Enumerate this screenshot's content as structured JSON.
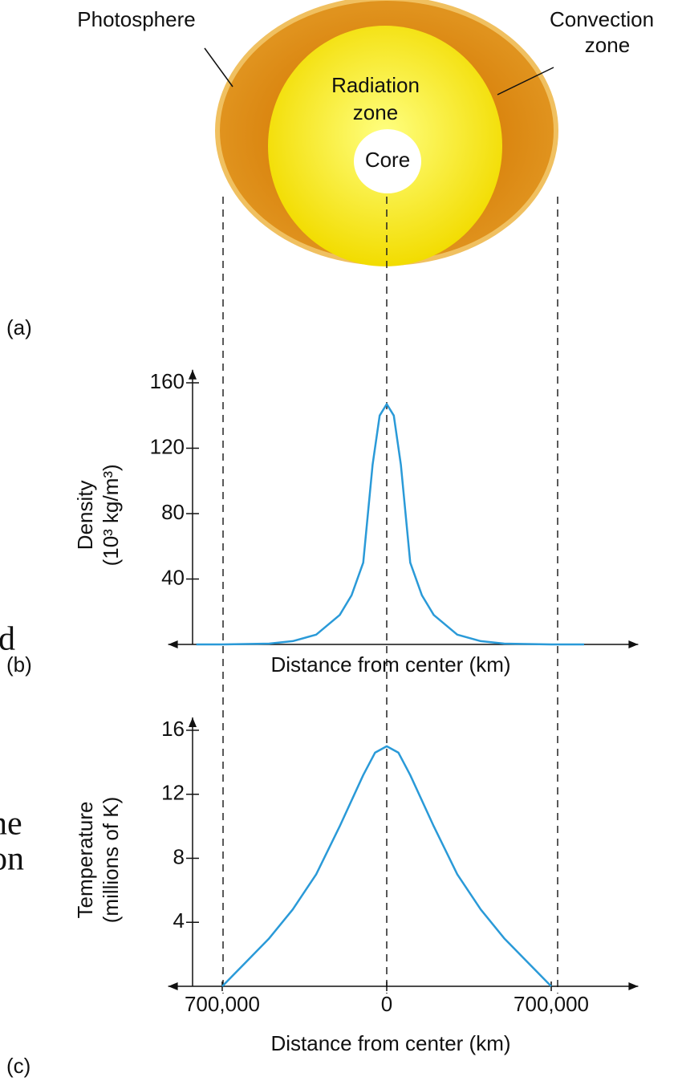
{
  "diagram": {
    "panel": "(a)",
    "photosphere": "Photosphere",
    "convection": [
      "Convection",
      "zone"
    ],
    "radiation": [
      "Radiation",
      "zone"
    ],
    "core": "Core"
  },
  "fragments": [
    "d",
    "ne",
    "on"
  ],
  "chart_data": [
    {
      "type": "line",
      "panel": "(b)",
      "ylabel": [
        "Density",
        "(10³ kg/m³)"
      ],
      "xlabel": "Distance from center (km)",
      "x": [
        -810000,
        -700000,
        -500000,
        -400000,
        -300000,
        -200000,
        -150000,
        -100000,
        -60000,
        -30000,
        0,
        30000,
        60000,
        100000,
        150000,
        200000,
        300000,
        400000,
        500000,
        700000,
        840000
      ],
      "series": [
        {
          "name": "Density",
          "color": "#2a9ad8",
          "values": [
            0,
            0,
            0.5,
            2,
            6,
            18,
            30,
            50,
            110,
            140,
            147,
            140,
            110,
            50,
            30,
            18,
            6,
            2,
            0.5,
            0,
            0
          ]
        }
      ],
      "xlim": [
        -930000,
        1070000
      ],
      "ylim": [
        0,
        168
      ],
      "yticks": [
        40,
        80,
        120,
        160
      ]
    },
    {
      "type": "line",
      "panel": "(c)",
      "ylabel": [
        "Temperature",
        "(millions of K)"
      ],
      "xlabel": "Distance from center (km)",
      "x": [
        -700000,
        -600000,
        -500000,
        -400000,
        -300000,
        -200000,
        -100000,
        -50000,
        0,
        50000,
        100000,
        200000,
        300000,
        400000,
        500000,
        600000,
        700000
      ],
      "series": [
        {
          "name": "Temperature",
          "color": "#2a9ad8",
          "values": [
            0,
            1.5,
            3,
            4.8,
            7,
            10,
            13.2,
            14.6,
            15,
            14.6,
            13.2,
            10,
            7,
            4.8,
            3,
            1.5,
            0
          ]
        }
      ],
      "xlim": [
        -930000,
        1070000
      ],
      "ylim": [
        0,
        16.8
      ],
      "yticks": [
        4,
        8,
        12,
        16
      ],
      "xticks": [
        {
          "value": -700000,
          "label": "700,000"
        },
        0,
        {
          "value": 700000,
          "label": "700,000"
        }
      ]
    }
  ]
}
